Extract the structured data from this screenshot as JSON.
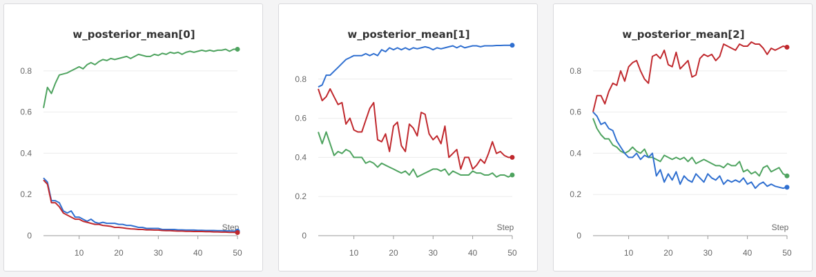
{
  "chart_data": [
    {
      "type": "line",
      "title": "w_posterior_mean[0]",
      "xlabel": "Step",
      "ylabel": "",
      "xlim": [
        1,
        50
      ],
      "ylim": [
        0,
        0.95
      ],
      "yticks": [
        0,
        0.2,
        0.4,
        0.6,
        0.8
      ],
      "ytick_labels": [
        "0",
        "0.2",
        "0.4",
        "0.6",
        "0.8"
      ],
      "xticks": [
        10,
        20,
        30,
        40,
        50
      ],
      "xtick_labels": [
        "10",
        "20",
        "30",
        "40",
        "50"
      ],
      "grid": true,
      "series": [
        {
          "color": "#4ea35f",
          "x": [
            1,
            2,
            3,
            4,
            5,
            6,
            7,
            8,
            9,
            10,
            11,
            12,
            13,
            14,
            15,
            16,
            17,
            18,
            19,
            20,
            21,
            22,
            23,
            24,
            25,
            26,
            27,
            28,
            29,
            30,
            31,
            32,
            33,
            34,
            35,
            36,
            37,
            38,
            39,
            40,
            41,
            42,
            43,
            44,
            45,
            46,
            47,
            48,
            49,
            50
          ],
          "y": [
            0.62,
            0.72,
            0.69,
            0.74,
            0.78,
            0.785,
            0.79,
            0.8,
            0.81,
            0.82,
            0.81,
            0.83,
            0.84,
            0.83,
            0.845,
            0.855,
            0.85,
            0.86,
            0.855,
            0.86,
            0.865,
            0.87,
            0.86,
            0.87,
            0.88,
            0.875,
            0.87,
            0.87,
            0.88,
            0.875,
            0.885,
            0.88,
            0.89,
            0.885,
            0.89,
            0.88,
            0.89,
            0.895,
            0.89,
            0.895,
            0.9,
            0.895,
            0.9,
            0.895,
            0.9,
            0.9,
            0.905,
            0.895,
            0.905,
            0.905
          ]
        },
        {
          "color": "#2f6fd0",
          "x": [
            1,
            2,
            3,
            4,
            5,
            6,
            7,
            8,
            9,
            10,
            11,
            12,
            13,
            14,
            15,
            16,
            17,
            18,
            19,
            20,
            21,
            22,
            23,
            24,
            25,
            26,
            27,
            28,
            29,
            30,
            31,
            32,
            33,
            34,
            35,
            36,
            37,
            38,
            39,
            40,
            41,
            42,
            43,
            44,
            45,
            46,
            47,
            48,
            49,
            50
          ],
          "y": [
            0.28,
            0.26,
            0.17,
            0.17,
            0.16,
            0.12,
            0.11,
            0.12,
            0.09,
            0.09,
            0.08,
            0.07,
            0.08,
            0.065,
            0.06,
            0.065,
            0.06,
            0.06,
            0.06,
            0.055,
            0.055,
            0.05,
            0.05,
            0.045,
            0.04,
            0.04,
            0.035,
            0.035,
            0.035,
            0.035,
            0.03,
            0.03,
            0.03,
            0.03,
            0.028,
            0.028,
            0.027,
            0.027,
            0.027,
            0.026,
            0.026,
            0.025,
            0.025,
            0.025,
            0.024,
            0.024,
            0.023,
            0.023,
            0.022,
            0.022
          ]
        },
        {
          "color": "#c0282d",
          "x": [
            1,
            2,
            3,
            4,
            5,
            6,
            7,
            8,
            9,
            10,
            11,
            12,
            13,
            14,
            15,
            16,
            17,
            18,
            19,
            20,
            21,
            22,
            23,
            24,
            25,
            26,
            27,
            28,
            29,
            30,
            31,
            32,
            33,
            34,
            35,
            36,
            37,
            38,
            39,
            40,
            41,
            42,
            43,
            44,
            45,
            46,
            47,
            48,
            49,
            50
          ],
          "y": [
            0.27,
            0.25,
            0.16,
            0.16,
            0.14,
            0.11,
            0.1,
            0.09,
            0.08,
            0.08,
            0.07,
            0.065,
            0.06,
            0.055,
            0.055,
            0.05,
            0.048,
            0.045,
            0.04,
            0.04,
            0.038,
            0.035,
            0.033,
            0.032,
            0.03,
            0.03,
            0.028,
            0.028,
            0.027,
            0.027,
            0.025,
            0.024,
            0.024,
            0.023,
            0.022,
            0.022,
            0.021,
            0.021,
            0.02,
            0.02,
            0.02,
            0.019,
            0.019,
            0.018,
            0.018,
            0.017,
            0.017,
            0.016,
            0.016,
            0.015
          ]
        }
      ]
    },
    {
      "type": "line",
      "title": "w_posterior_mean[1]",
      "xlabel": "Step",
      "ylabel": "",
      "xlim": [
        1,
        50
      ],
      "ylim": [
        0,
        1.0
      ],
      "yticks": [
        0,
        0.2,
        0.4,
        0.6,
        0.8
      ],
      "ytick_labels": [
        "0",
        "0.2",
        "0.4",
        "0.6",
        "0.8"
      ],
      "xticks": [
        10,
        20,
        30,
        40,
        50
      ],
      "xtick_labels": [
        "10",
        "20",
        "30",
        "40",
        "50"
      ],
      "grid": true,
      "series": [
        {
          "color": "#2f6fd0",
          "x": [
            1,
            2,
            3,
            4,
            5,
            6,
            7,
            8,
            9,
            10,
            11,
            12,
            13,
            14,
            15,
            16,
            17,
            18,
            19,
            20,
            21,
            22,
            23,
            24,
            25,
            26,
            27,
            28,
            29,
            30,
            31,
            32,
            33,
            34,
            35,
            36,
            37,
            38,
            39,
            40,
            41,
            42,
            43,
            44,
            45,
            46,
            47,
            48,
            49,
            50
          ],
          "y": [
            0.76,
            0.77,
            0.82,
            0.82,
            0.84,
            0.86,
            0.88,
            0.9,
            0.91,
            0.92,
            0.92,
            0.92,
            0.93,
            0.92,
            0.93,
            0.92,
            0.95,
            0.94,
            0.96,
            0.95,
            0.96,
            0.95,
            0.96,
            0.95,
            0.96,
            0.955,
            0.96,
            0.965,
            0.96,
            0.95,
            0.96,
            0.955,
            0.96,
            0.965,
            0.97,
            0.96,
            0.97,
            0.96,
            0.965,
            0.97,
            0.97,
            0.965,
            0.97,
            0.97,
            0.97,
            0.972,
            0.972,
            0.973,
            0.973,
            0.973
          ]
        },
        {
          "color": "#c0282d",
          "x": [
            1,
            2,
            3,
            4,
            5,
            6,
            7,
            8,
            9,
            10,
            11,
            12,
            13,
            14,
            15,
            16,
            17,
            18,
            19,
            20,
            21,
            22,
            23,
            24,
            25,
            26,
            27,
            28,
            29,
            30,
            31,
            32,
            33,
            34,
            35,
            36,
            37,
            38,
            39,
            40,
            41,
            42,
            43,
            44,
            45,
            46,
            47,
            48,
            49,
            50
          ],
          "y": [
            0.75,
            0.69,
            0.71,
            0.75,
            0.71,
            0.67,
            0.68,
            0.57,
            0.6,
            0.54,
            0.53,
            0.53,
            0.59,
            0.65,
            0.68,
            0.49,
            0.48,
            0.52,
            0.43,
            0.56,
            0.58,
            0.46,
            0.43,
            0.57,
            0.55,
            0.51,
            0.63,
            0.62,
            0.52,
            0.49,
            0.51,
            0.47,
            0.56,
            0.4,
            0.42,
            0.44,
            0.34,
            0.4,
            0.4,
            0.34,
            0.36,
            0.39,
            0.37,
            0.42,
            0.48,
            0.42,
            0.43,
            0.41,
            0.4,
            0.4
          ]
        },
        {
          "color": "#4ea35f",
          "x": [
            1,
            2,
            3,
            4,
            5,
            6,
            7,
            8,
            9,
            10,
            11,
            12,
            13,
            14,
            15,
            16,
            17,
            18,
            19,
            20,
            21,
            22,
            23,
            24,
            25,
            26,
            27,
            28,
            29,
            30,
            31,
            32,
            33,
            34,
            35,
            36,
            37,
            38,
            39,
            40,
            41,
            42,
            43,
            44,
            45,
            46,
            47,
            48,
            49,
            50
          ],
          "y": [
            0.53,
            0.47,
            0.53,
            0.47,
            0.41,
            0.43,
            0.42,
            0.44,
            0.43,
            0.4,
            0.4,
            0.4,
            0.37,
            0.38,
            0.37,
            0.35,
            0.37,
            0.36,
            0.35,
            0.34,
            0.33,
            0.32,
            0.33,
            0.31,
            0.34,
            0.3,
            0.31,
            0.32,
            0.33,
            0.34,
            0.34,
            0.33,
            0.34,
            0.31,
            0.33,
            0.32,
            0.31,
            0.31,
            0.31,
            0.33,
            0.32,
            0.32,
            0.31,
            0.31,
            0.32,
            0.3,
            0.31,
            0.31,
            0.3,
            0.31
          ]
        }
      ]
    },
    {
      "type": "line",
      "title": "w_posterior_mean[2]",
      "xlabel": "Step",
      "ylabel": "",
      "xlim": [
        1,
        50
      ],
      "ylim": [
        0,
        0.95
      ],
      "yticks": [
        0,
        0.2,
        0.4,
        0.6,
        0.8
      ],
      "ytick_labels": [
        "0",
        "0.2",
        "0.4",
        "0.6",
        "0.8"
      ],
      "xticks": [
        10,
        20,
        30,
        40,
        50
      ],
      "xtick_labels": [
        "10",
        "20",
        "30",
        "40",
        "50"
      ],
      "grid": true,
      "series": [
        {
          "color": "#c0282d",
          "x": [
            1,
            2,
            3,
            4,
            5,
            6,
            7,
            8,
            9,
            10,
            11,
            12,
            13,
            14,
            15,
            16,
            17,
            18,
            19,
            20,
            21,
            22,
            23,
            24,
            25,
            26,
            27,
            28,
            29,
            30,
            31,
            32,
            33,
            34,
            35,
            36,
            37,
            38,
            39,
            40,
            41,
            42,
            43,
            44,
            45,
            46,
            47,
            48,
            49,
            50
          ],
          "y": [
            0.6,
            0.68,
            0.68,
            0.64,
            0.7,
            0.74,
            0.73,
            0.8,
            0.75,
            0.82,
            0.84,
            0.85,
            0.8,
            0.76,
            0.74,
            0.87,
            0.88,
            0.86,
            0.9,
            0.83,
            0.82,
            0.89,
            0.81,
            0.83,
            0.85,
            0.77,
            0.78,
            0.86,
            0.88,
            0.87,
            0.88,
            0.85,
            0.87,
            0.93,
            0.92,
            0.91,
            0.9,
            0.93,
            0.92,
            0.92,
            0.94,
            0.93,
            0.93,
            0.91,
            0.88,
            0.91,
            0.9,
            0.91,
            0.92,
            0.915
          ]
        },
        {
          "color": "#4ea35f",
          "x": [
            1,
            2,
            3,
            4,
            5,
            6,
            7,
            8,
            9,
            10,
            11,
            12,
            13,
            14,
            15,
            16,
            17,
            18,
            19,
            20,
            21,
            22,
            23,
            24,
            25,
            26,
            27,
            28,
            29,
            30,
            31,
            32,
            33,
            34,
            35,
            36,
            37,
            38,
            39,
            40,
            41,
            42,
            43,
            44,
            45,
            46,
            47,
            48,
            49,
            50
          ],
          "y": [
            0.57,
            0.52,
            0.49,
            0.47,
            0.47,
            0.44,
            0.43,
            0.41,
            0.4,
            0.41,
            0.43,
            0.41,
            0.4,
            0.42,
            0.38,
            0.38,
            0.37,
            0.36,
            0.39,
            0.38,
            0.37,
            0.38,
            0.37,
            0.38,
            0.36,
            0.38,
            0.35,
            0.36,
            0.37,
            0.36,
            0.35,
            0.34,
            0.34,
            0.33,
            0.35,
            0.34,
            0.34,
            0.36,
            0.31,
            0.32,
            0.3,
            0.31,
            0.29,
            0.33,
            0.34,
            0.31,
            0.32,
            0.33,
            0.3,
            0.29
          ]
        },
        {
          "color": "#2f6fd0",
          "x": [
            1,
            2,
            3,
            4,
            5,
            6,
            7,
            8,
            9,
            10,
            11,
            12,
            13,
            14,
            15,
            16,
            17,
            18,
            19,
            20,
            21,
            22,
            23,
            24,
            25,
            26,
            27,
            28,
            29,
            30,
            31,
            32,
            33,
            34,
            35,
            36,
            37,
            38,
            39,
            40,
            41,
            42,
            43,
            44,
            45,
            46,
            47,
            48,
            49,
            50
          ],
          "y": [
            0.6,
            0.58,
            0.54,
            0.55,
            0.52,
            0.51,
            0.46,
            0.43,
            0.4,
            0.38,
            0.38,
            0.4,
            0.37,
            0.39,
            0.38,
            0.4,
            0.29,
            0.32,
            0.26,
            0.3,
            0.27,
            0.31,
            0.25,
            0.29,
            0.27,
            0.26,
            0.3,
            0.28,
            0.26,
            0.3,
            0.28,
            0.27,
            0.29,
            0.25,
            0.27,
            0.26,
            0.27,
            0.26,
            0.28,
            0.25,
            0.26,
            0.23,
            0.25,
            0.26,
            0.24,
            0.25,
            0.24,
            0.235,
            0.23,
            0.235
          ]
        }
      ]
    }
  ]
}
